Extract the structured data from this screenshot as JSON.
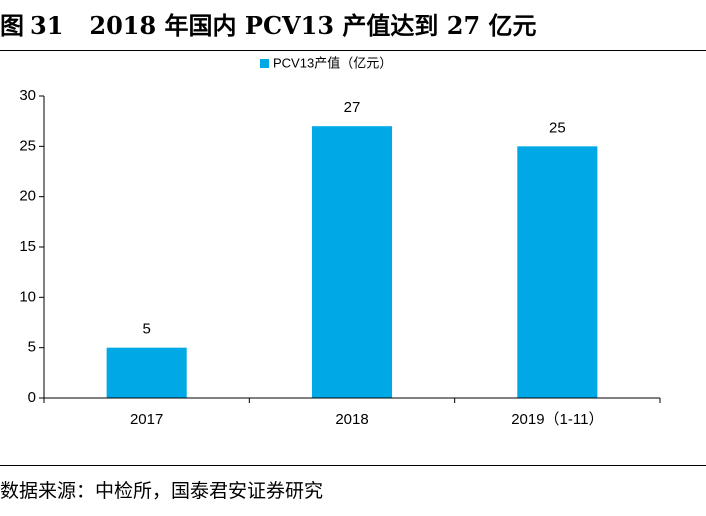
{
  "figure": {
    "label": "图",
    "number": "31",
    "title": "2018 年国内 PCV13 产值达到 27 亿元"
  },
  "chart_data": {
    "type": "bar",
    "categories": [
      "2017",
      "2018",
      "2019（1-11）"
    ],
    "series": [
      {
        "name": "PCV13产值（亿元）",
        "values": [
          5,
          27,
          25
        ],
        "color": "#00A9E6"
      }
    ],
    "data_labels": [
      "5",
      "27",
      "25"
    ],
    "ylim": [
      0,
      30
    ],
    "yticks": [
      0,
      5,
      10,
      15,
      20,
      25,
      30
    ],
    "xlabel": "",
    "ylabel": "",
    "grid": false,
    "legend_position": "top-center"
  },
  "source": "数据来源：中检所，国泰君安证券研究",
  "colors": {
    "bar": "#00A9E6",
    "axis": "#000000",
    "text": "#000000"
  }
}
